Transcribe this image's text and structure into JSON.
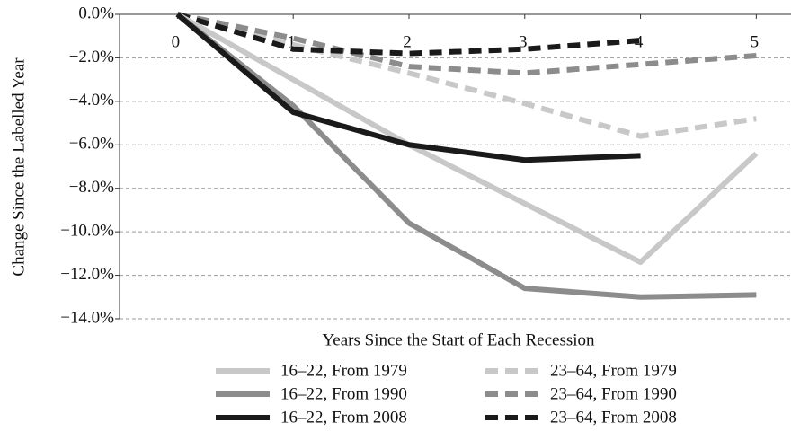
{
  "chart_data": {
    "type": "line",
    "x_label": "Years Since the Start of Each Recession",
    "y_label": "Change Since the Labelled Year",
    "x": [
      0,
      1,
      2,
      3,
      4,
      5
    ],
    "xlim": [
      -0.5,
      5.3
    ],
    "xticks": [
      0,
      1,
      2,
      3,
      4,
      5
    ],
    "ylim": [
      -14,
      0
    ],
    "yticks": [
      {
        "value": 0,
        "label": "0.0%"
      },
      {
        "value": -2,
        "label": "−2.0%"
      },
      {
        "value": -4,
        "label": "−4.0%"
      },
      {
        "value": -6,
        "label": "−6.0%"
      },
      {
        "value": -8,
        "label": "−8.0%"
      },
      {
        "value": -10,
        "label": "−10.0%"
      },
      {
        "value": -12,
        "label": "−12.0%"
      },
      {
        "value": -14,
        "label": "−14.0%"
      }
    ],
    "grid": true,
    "series": [
      {
        "name": "16–22, From 1979",
        "color": "#c8c8c8",
        "style": "solid",
        "values": [
          0,
          -3.0,
          -6.0,
          -8.7,
          -11.4,
          -6.4
        ]
      },
      {
        "name": "16–22, From 1990",
        "color": "#8c8c8c",
        "style": "solid",
        "values": [
          0,
          -4.2,
          -9.6,
          -12.6,
          -13.0,
          -12.9
        ]
      },
      {
        "name": "16–22, From 2008",
        "color": "#1a1a1a",
        "style": "solid",
        "values": [
          0,
          -4.5,
          -6.0,
          -6.7,
          -6.5,
          null
        ]
      },
      {
        "name": "23–64, From 1979",
        "color": "#c8c8c8",
        "style": "dashed",
        "values": [
          0,
          -1.4,
          -2.7,
          -4.1,
          -5.6,
          -4.8
        ]
      },
      {
        "name": "23–64, From 1990",
        "color": "#8c8c8c",
        "style": "dashed",
        "values": [
          0,
          -1.1,
          -2.4,
          -2.7,
          -2.3,
          -1.9
        ]
      },
      {
        "name": "23–64, From 2008",
        "color": "#1a1a1a",
        "style": "dashed",
        "values": [
          0,
          -1.6,
          -1.8,
          -1.6,
          -1.2,
          null
        ]
      }
    ]
  }
}
